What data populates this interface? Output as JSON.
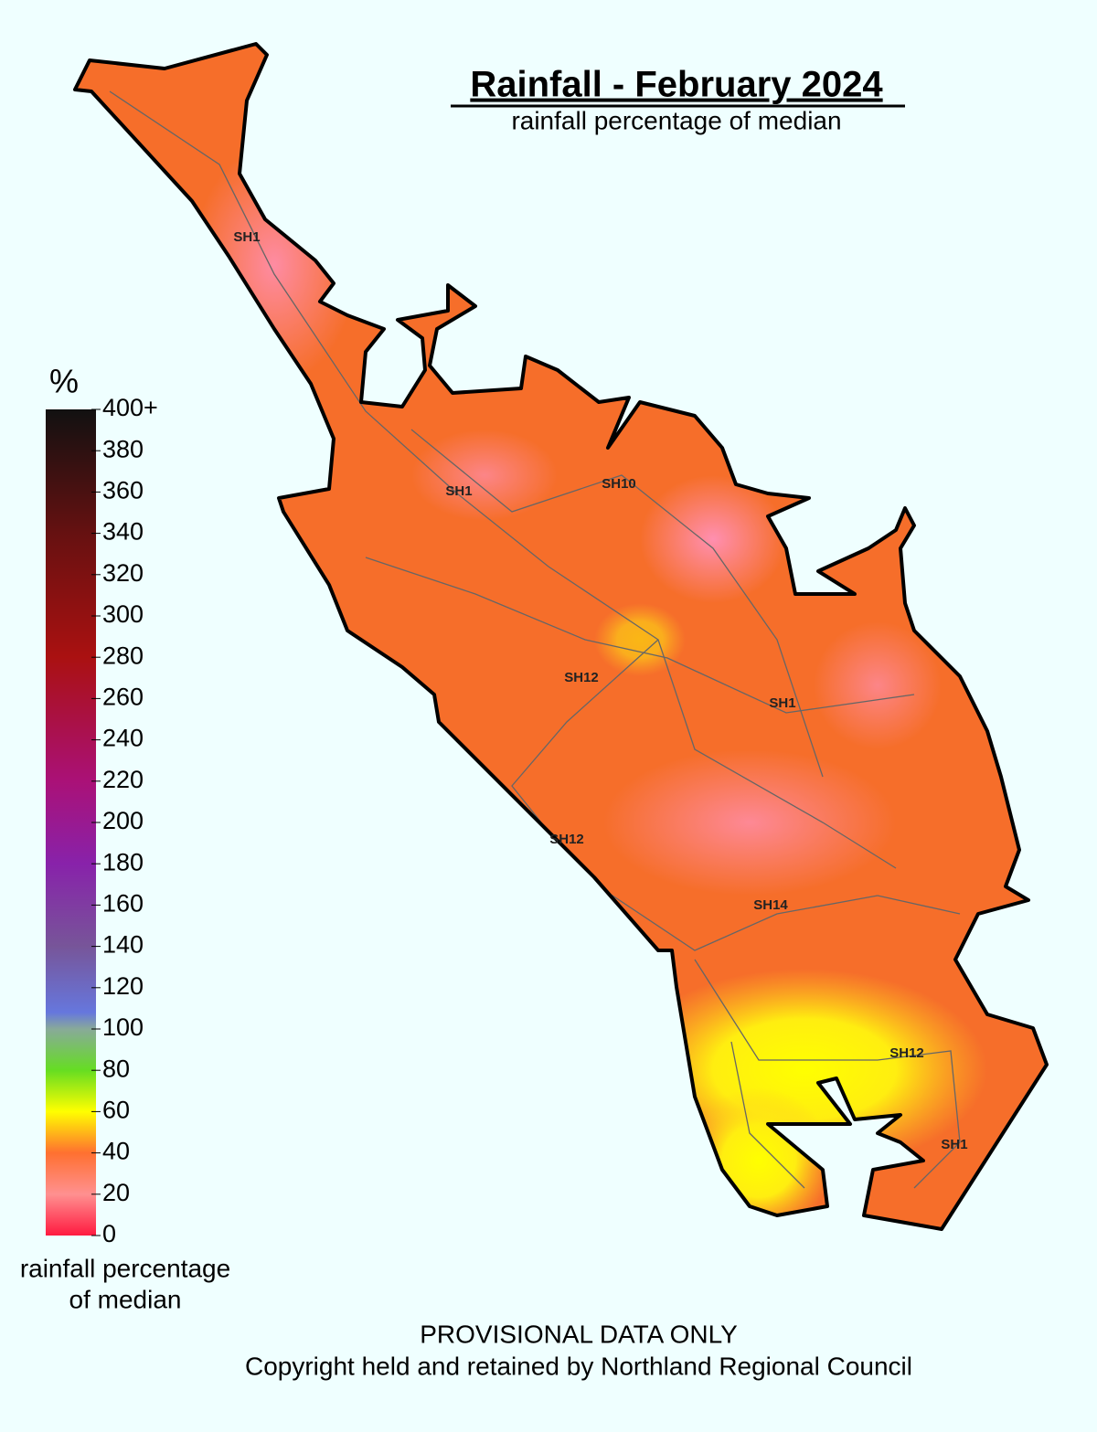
{
  "header": {
    "title": "Rainfall - February 2024",
    "subtitle": "rainfall percentage of median"
  },
  "legend": {
    "unit": "%",
    "ticks": [
      0,
      20,
      40,
      60,
      80,
      100,
      120,
      140,
      160,
      180,
      200,
      220,
      240,
      260,
      280,
      300,
      320,
      340,
      360,
      380,
      {
        "value": 400,
        "label": "400+"
      }
    ],
    "caption": [
      "rainfall percentage",
      "of median"
    ]
  },
  "road_labels": [
    "SH1",
    "SH1",
    "SH10",
    "SH12",
    "SH1",
    "SH12",
    "SH14",
    "SH12",
    "SH1"
  ],
  "footer": [
    "PROVISIONAL DATA ONLY",
    "Copyright held and retained by Northland Regional Council"
  ]
}
